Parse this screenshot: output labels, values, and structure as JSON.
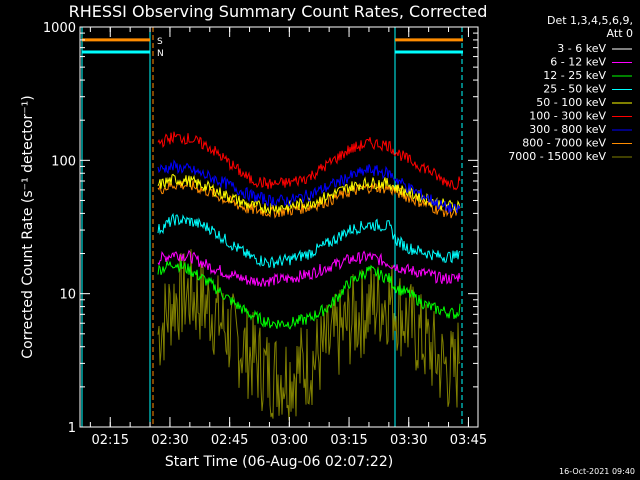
{
  "chart_data": {
    "type": "line",
    "title": "RHESSI Observing Summary Count Rates, Corrected",
    "xlabel": "Start Time (06-Aug-06 02:07:22)",
    "ylabel": "Corrected Count Rate (s⁻¹ detector⁻¹)",
    "yscale": "log",
    "ylim": [
      1,
      1000
    ],
    "xlim_minutes_after_0200": [
      7.4,
      107.4
    ],
    "x_tick_labels": [
      "02:15",
      "02:30",
      "02:45",
      "03:00",
      "03:15",
      "03:30",
      "03:45"
    ],
    "y_tick_labels": [
      "1",
      "10",
      "100",
      "1000"
    ],
    "timestamp": "16-Oct-2021 09:40",
    "legend_header": [
      "Det 1,3,4,5,6,9,",
      "Att 0"
    ],
    "x": [
      "02:23",
      "02:25",
      "02:27",
      "02:31",
      "02:35",
      "02:40",
      "02:45",
      "02:50",
      "02:55",
      "03:00",
      "03:05",
      "03:10",
      "03:15",
      "03:20",
      "03:25",
      "03:27",
      "03:30",
      "03:35",
      "03:38",
      "03:42",
      "03:43"
    ],
    "series": [
      {
        "name": "3 - 6 keV",
        "color": "#ffffff",
        "values": [
          null,
          null,
          null,
          null,
          null,
          null,
          null,
          null,
          null,
          null,
          null,
          null,
          null,
          null,
          null,
          null,
          null,
          null,
          null,
          null,
          null
        ]
      },
      {
        "name": "6 - 12 keV",
        "color": "#ff00ff",
        "values": [
          null,
          null,
          18,
          20,
          19,
          16,
          14,
          12.5,
          12.5,
          13,
          14,
          16,
          18,
          19,
          17,
          16,
          15,
          14,
          13,
          13,
          14
        ]
      },
      {
        "name": "12 - 25 keV",
        "color": "#00ff00",
        "values": [
          null,
          null,
          15,
          17,
          15,
          12,
          9,
          7,
          6,
          6,
          6.5,
          8,
          12,
          15,
          13,
          11,
          10,
          8,
          7.5,
          7,
          8
        ]
      },
      {
        "name": "25 - 50 keV",
        "color": "#00ffff",
        "values": [
          null,
          null,
          30,
          36,
          35,
          31,
          24,
          19,
          17,
          18,
          20,
          24,
          30,
          33,
          32,
          25,
          22,
          20,
          19,
          19,
          22
        ]
      },
      {
        "name": "50 - 100 keV",
        "color": "#ffff00",
        "values": [
          null,
          null,
          65,
          72,
          70,
          62,
          53,
          46,
          44,
          45,
          48,
          54,
          63,
          68,
          67,
          62,
          57,
          51,
          47,
          45,
          48
        ]
      },
      {
        "name": "100 - 300 keV",
        "color": "#ff0000",
        "values": [
          null,
          null,
          135,
          150,
          145,
          125,
          95,
          72,
          66,
          68,
          75,
          95,
          120,
          135,
          130,
          115,
          100,
          85,
          72,
          66,
          75
        ]
      },
      {
        "name": "300 - 800 keV",
        "color": "#0000ff",
        "values": [
          null,
          null,
          85,
          90,
          85,
          75,
          65,
          55,
          50,
          50,
          55,
          64,
          75,
          85,
          80,
          72,
          62,
          52,
          46,
          42,
          45
        ]
      },
      {
        "name": "800 - 7000 keV",
        "color": "#ff8c00",
        "values": [
          null,
          null,
          60,
          66,
          65,
          58,
          49,
          43,
          41,
          42,
          45,
          50,
          58,
          63,
          62,
          58,
          53,
          46,
          42,
          40,
          42
        ]
      },
      {
        "name": "7000 - 15000 keV",
        "color": "#808000",
        "values": [
          null,
          null,
          5,
          9,
          10,
          8,
          5,
          3.5,
          2.5,
          2.5,
          3,
          4,
          6,
          8,
          9,
          8,
          6,
          4,
          3,
          2.5,
          5
        ]
      }
    ],
    "status_flags": [
      {
        "label": "S",
        "color": "#ff8c00",
        "value": 800
      },
      {
        "label": "N",
        "color": "#00ffff",
        "value": 650
      }
    ]
  }
}
